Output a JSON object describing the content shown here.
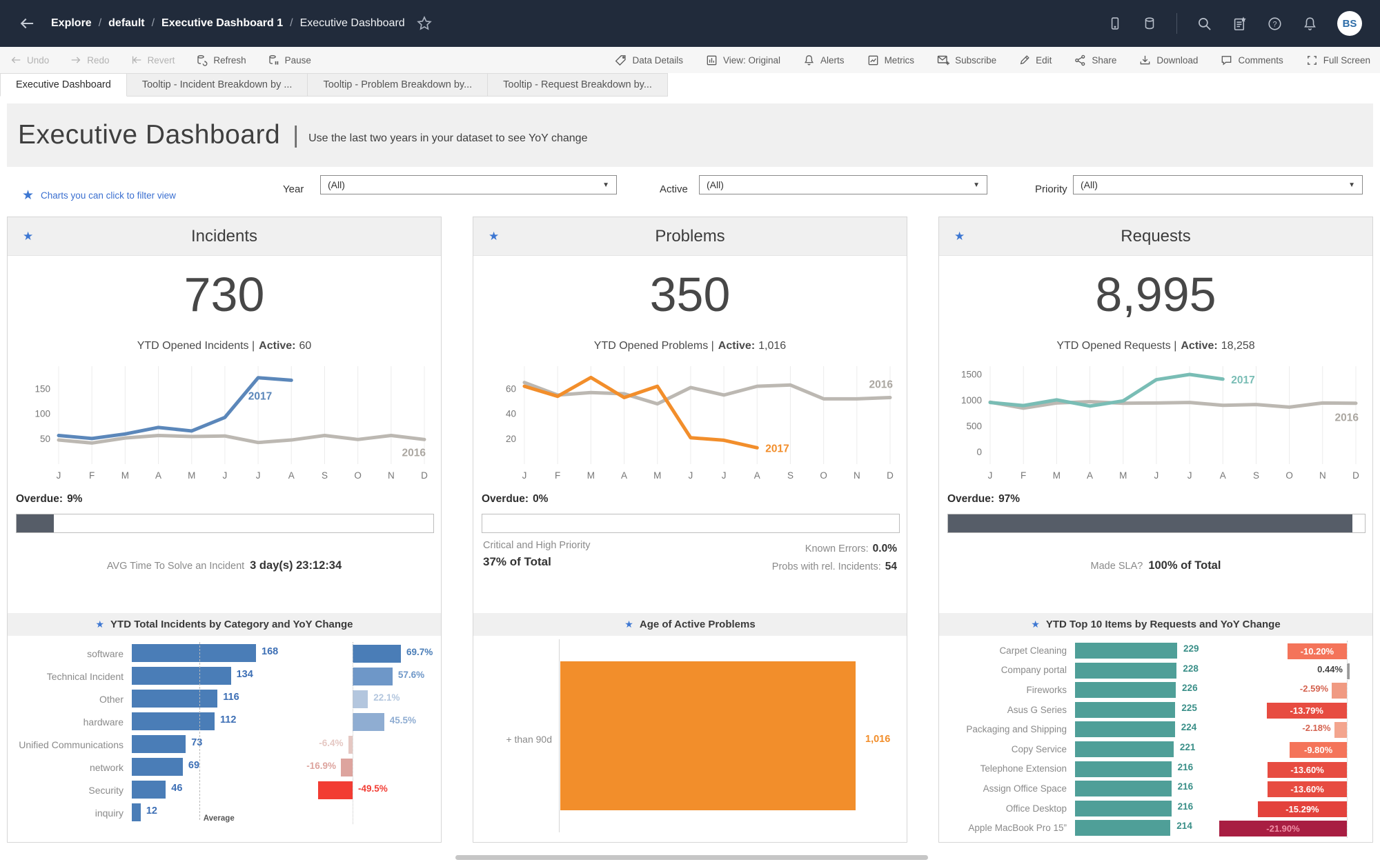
{
  "topbar": {
    "breadcrumb": [
      "Explore",
      "default",
      "Executive Dashboard 1",
      "Executive Dashboard"
    ],
    "separator": "/",
    "avatar_initials": "BS"
  },
  "toolbar": {
    "undo": "Undo",
    "redo": "Redo",
    "revert": "Revert",
    "refresh": "Refresh",
    "pause": "Pause",
    "data_details": "Data Details",
    "view": "View: Original",
    "alerts": "Alerts",
    "metrics": "Metrics",
    "subscribe": "Subscribe",
    "edit": "Edit",
    "share": "Share",
    "download": "Download",
    "comments": "Comments",
    "full_screen": "Full Screen"
  },
  "tabs": [
    {
      "label": "Executive Dashboard",
      "active": true
    },
    {
      "label": "Tooltip - Incident Breakdown by ...",
      "active": false
    },
    {
      "label": "Tooltip - Problem Breakdown by...",
      "active": false
    },
    {
      "label": "Tooltip - Request Breakdown by...",
      "active": false
    }
  ],
  "header": {
    "title": "Executive Dashboard",
    "separator": "|",
    "subtitle": "Use the last two years in your dataset to see YoY change"
  },
  "filter_note": "Charts you can click to filter view",
  "filters": [
    {
      "label": "Year",
      "value": "(All)"
    },
    {
      "label": "Active",
      "value": "(All)"
    },
    {
      "label": "Priority",
      "value": "(All)"
    }
  ],
  "cards": {
    "incidents": {
      "title": "Incidents",
      "big_number": "730",
      "subtitle_prefix": "YTD Opened Incidents |",
      "active_label": "Active:",
      "active_value": "60",
      "overdue_label": "Overdue:",
      "overdue_value": "9%",
      "overdue_pct": 9,
      "stat_label": "AVG Time To Solve an Incident",
      "stat_value": "3 day(s) 23:12:34",
      "section_title": "YTD Total Incidents by Category and YoY Change"
    },
    "problems": {
      "title": "Problems",
      "big_number": "350",
      "subtitle_prefix": "YTD Opened Problems |",
      "active_label": "Active:",
      "active_value": "1,016",
      "overdue_label": "Overdue:",
      "overdue_value": "0%",
      "overdue_pct": 0,
      "stat_left_label": "Critical and High Priority",
      "stat_left_value": "37% of Total",
      "known_errors_label": "Known Errors:",
      "known_errors_value": "0.0%",
      "probs_rel_label": "Probs with rel. Incidents:",
      "probs_rel_value": "54",
      "section_title": "Age of Active Problems"
    },
    "requests": {
      "title": "Requests",
      "big_number": "8,995",
      "subtitle_prefix": "YTD Opened Requests |",
      "active_label": "Active:",
      "active_value": "18,258",
      "overdue_label": "Overdue:",
      "overdue_value": "97%",
      "overdue_pct": 97,
      "stat_label": "Made SLA?",
      "stat_value": "100% of Total",
      "section_title": "YTD Top 10 Items by Requests and YoY Change"
    }
  },
  "chart_data": [
    {
      "type": "line",
      "name": "incidents-trend",
      "x": [
        "J",
        "F",
        "M",
        "A",
        "M",
        "J",
        "J",
        "A",
        "S",
        "O",
        "N",
        "D"
      ],
      "yticks": [
        50,
        100,
        150
      ],
      "ymin": 0,
      "ymax": 195,
      "series": [
        {
          "name": "2016",
          "color": "#bcb8b2",
          "values": [
            48,
            42,
            52,
            57,
            55,
            56,
            43,
            48,
            57,
            49,
            57,
            49
          ]
        },
        {
          "name": "2017",
          "color": "#5b87ba",
          "values": [
            57,
            51,
            60,
            73,
            66,
            93,
            172,
            167
          ]
        }
      ]
    },
    {
      "type": "line",
      "name": "problems-trend",
      "x": [
        "J",
        "F",
        "M",
        "A",
        "M",
        "J",
        "J",
        "A",
        "S",
        "O",
        "N",
        "D"
      ],
      "yticks": [
        20,
        40,
        60
      ],
      "ymin": 0,
      "ymax": 78,
      "series": [
        {
          "name": "2016",
          "color": "#bcb8b2",
          "values": [
            65,
            55,
            57,
            56,
            48,
            61,
            55,
            62,
            63,
            52,
            52,
            53
          ]
        },
        {
          "name": "2017",
          "color": "#f28e2b",
          "values": [
            62,
            54,
            69,
            53,
            62,
            21,
            19,
            13
          ]
        }
      ]
    },
    {
      "type": "line",
      "name": "requests-trend",
      "x": [
        "J",
        "F",
        "M",
        "A",
        "M",
        "J",
        "J",
        "A",
        "S",
        "O",
        "N",
        "D"
      ],
      "yticks": [
        0,
        500,
        1000,
        1500
      ],
      "ymin": -230,
      "ymax": 1660,
      "series": [
        {
          "name": "2016",
          "color": "#bcb8b2",
          "values": [
            965,
            850,
            950,
            975,
            945,
            950,
            960,
            905,
            920,
            870,
            950,
            945
          ]
        },
        {
          "name": "2017",
          "color": "#79bdb5",
          "values": [
            960,
            900,
            1010,
            890,
            990,
            1400,
            1500,
            1410
          ]
        }
      ]
    },
    {
      "type": "bar",
      "name": "incidents-by-category",
      "title": "YTD Total Incidents by Category and YoY Change",
      "value_color": "#3d6fb5",
      "average": 91.25,
      "average_label": "Average",
      "max_value": 168,
      "max_yoy": 69.7,
      "items": [
        {
          "label": "software",
          "value": 168,
          "yoy": 69.7,
          "yoy_display": "69.7%",
          "yoy_color": "#4a7db7"
        },
        {
          "label": "Technical Incident",
          "value": 134,
          "yoy": 57.6,
          "yoy_display": "57.6%",
          "yoy_color": "#6e97c8"
        },
        {
          "label": "Other",
          "value": 116,
          "yoy": 22.1,
          "yoy_display": "22.1%",
          "yoy_color": "#b3c6de"
        },
        {
          "label": "hardware",
          "value": 112,
          "yoy": 45.5,
          "yoy_display": "45.5%",
          "yoy_color": "#8fadd2"
        },
        {
          "label": "Unified Communications",
          "value": 73,
          "yoy": -6.4,
          "yoy_display": "-6.4%",
          "yoy_color": "#e5c8c3"
        },
        {
          "label": "network",
          "value": 69,
          "yoy": -16.9,
          "yoy_display": "-16.9%",
          "yoy_color": "#dda49e"
        },
        {
          "label": "Security",
          "value": 46,
          "yoy": -49.5,
          "yoy_display": "-49.5%",
          "yoy_color": "#f23c33"
        },
        {
          "label": "inquiry",
          "value": 12,
          "yoy": null,
          "yoy_display": "",
          "yoy_color": ""
        }
      ]
    },
    {
      "type": "bar",
      "name": "age-of-active-problems",
      "title": "Age of Active Problems",
      "items": [
        {
          "label": "+ than 90d",
          "value": 1016,
          "display": "1,016",
          "color": "#f28e2b"
        }
      ]
    },
    {
      "type": "bar",
      "name": "top10-items-by-requests",
      "title": "YTD Top 10 Items by Requests and YoY Change",
      "bar_color": "#4f9f98",
      "value_color": "#3a8f88",
      "max_value": 229,
      "max_yoy": 21.9,
      "items": [
        {
          "label": "Carpet Cleaning",
          "value": 229,
          "yoy": -10.2,
          "yoy_display": "-10.20%",
          "yoy_color": "#f4745a",
          "label_color": "#ffffff"
        },
        {
          "label": "Company portal",
          "value": 228,
          "yoy": 0.44,
          "yoy_display": "0.44%",
          "yoy_color": "#9a9a9a",
          "label_color": "#444444"
        },
        {
          "label": "Fireworks",
          "value": 226,
          "yoy": -2.59,
          "yoy_display": "-2.59%",
          "yoy_color": "#f09a82",
          "label_color": "#d4624f"
        },
        {
          "label": "Asus G Series",
          "value": 225,
          "yoy": -13.79,
          "yoy_display": "-13.79%",
          "yoy_color": "#e74c41",
          "label_color": "#ffffff"
        },
        {
          "label": "Packaging and Shipping",
          "value": 224,
          "yoy": -2.18,
          "yoy_display": "-2.18%",
          "yoy_color": "#f3a58e",
          "label_color": "#d4624f"
        },
        {
          "label": "Copy Service",
          "value": 221,
          "yoy": -9.8,
          "yoy_display": "-9.80%",
          "yoy_color": "#f4745a",
          "label_color": "#ffffff"
        },
        {
          "label": "Telephone Extension",
          "value": 216,
          "yoy": -13.6,
          "yoy_display": "-13.60%",
          "yoy_color": "#e74c41",
          "label_color": "#ffffff"
        },
        {
          "label": "Assign Office Space",
          "value": 216,
          "yoy": -13.6,
          "yoy_display": "-13.60%",
          "yoy_color": "#e74c41",
          "label_color": "#ffffff"
        },
        {
          "label": "Office Desktop",
          "value": 216,
          "yoy": -15.29,
          "yoy_display": "-15.29%",
          "yoy_color": "#e3423c",
          "label_color": "#ffffff"
        },
        {
          "label": "Apple MacBook Pro 15”",
          "value": 214,
          "yoy": -21.9,
          "yoy_display": "-21.90%",
          "yoy_color": "#a81e42",
          "label_color": "#ef8fa6"
        }
      ]
    }
  ],
  "colors": {
    "navy": "#212b3b",
    "accent_star": "#3d77d2",
    "line_2016": "#bcb8b2",
    "incidents_blue": "#5b87ba",
    "problems_orange": "#f28e2b",
    "requests_teal": "#79bdb5",
    "progress_fill": "#565d68"
  }
}
